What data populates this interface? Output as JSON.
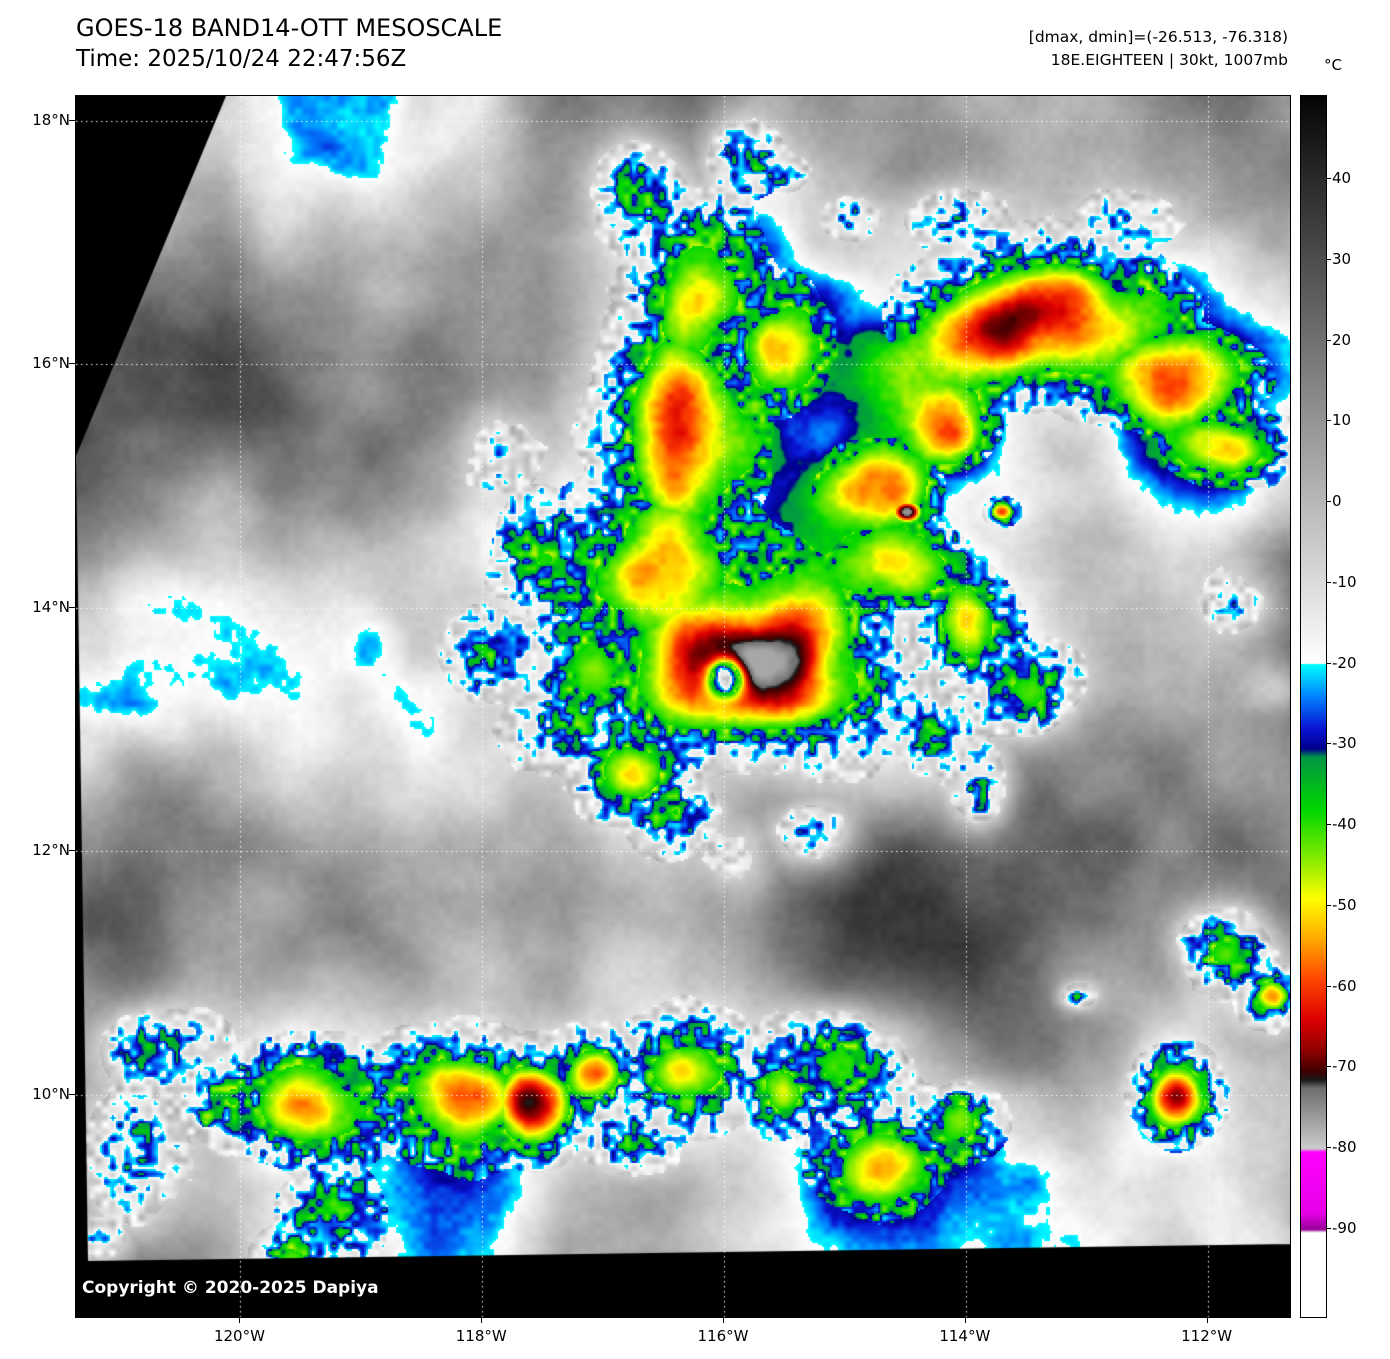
{
  "header": {
    "title": "GOES-18 BAND14-OTT MESOSCALE",
    "time": "Time: 2025/10/24 22:47:56Z"
  },
  "annotations": {
    "dmax_dmin": "[dmax, dmin]=(-26.513, -76.318)",
    "storm_info": "18E.EIGHTEEN | 30kt, 1007mb"
  },
  "colorbar": {
    "unit": "°C",
    "tick_values": [
      40,
      30,
      20,
      10,
      0,
      -10,
      -20,
      -30,
      -40,
      -50,
      -60,
      -70,
      -80,
      -90
    ]
  },
  "axes": {
    "lat_ticks": [
      {
        "label": "18°N",
        "value": 18
      },
      {
        "label": "16°N",
        "value": 16
      },
      {
        "label": "14°N",
        "value": 14
      },
      {
        "label": "12°N",
        "value": 12
      },
      {
        "label": "10°N",
        "value": 10
      }
    ],
    "lon_ticks": [
      {
        "label": "120°W",
        "value": -120
      },
      {
        "label": "118°W",
        "value": -118
      },
      {
        "label": "116°W",
        "value": -116
      },
      {
        "label": "114°W",
        "value": -114
      },
      {
        "label": "112°W",
        "value": -112
      }
    ]
  },
  "copyright": "Copyright © 2020-2025 Dapiya"
}
